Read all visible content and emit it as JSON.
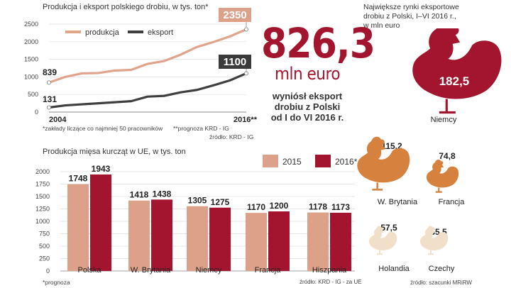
{
  "colors": {
    "prod": "#e0a38c",
    "eksp": "#3f3f3f",
    "c2015": "#dda18a",
    "c2016": "#a3152f",
    "dark": "#333333",
    "maroon": "#a3152f",
    "light_orange": "#d6823e",
    "lighter": "#f1dfc9"
  },
  "line_chart": {
    "title": "Produkcja i eksport polskiego drobiu, w tys. ton*",
    "legend": {
      "production": "produkcja",
      "export": "eksport"
    },
    "start_label_prod": "839",
    "start_label_eksp": "131",
    "end_label_prod": "2350",
    "end_label_eksp": "1100",
    "x_start": "2004",
    "x_end": "2016**",
    "yticks": [
      "0",
      "500",
      "1000",
      "1500",
      "2000",
      "2500"
    ],
    "footnote": "*zakłady liczące co najmniej 50 pracowników",
    "footnote2": "**prognoza KRD - IG",
    "source": "źródło: KRD - IG"
  },
  "highlight": {
    "value": "826,3",
    "unit": "mln euro",
    "desc_line1": "wyniósł eksport",
    "desc_line2": "drobiu z Polski",
    "desc_line3": "od I do VI 2016 r."
  },
  "markets": {
    "title_line1": "Największe rynki eksportowe",
    "title_line2": "drobiu z Polski, I–VI 2016 r.,",
    "title_line3": "w mln euro",
    "items": [
      {
        "name": "Niemcy",
        "value": "182,5"
      },
      {
        "name": "W. Brytania",
        "value": "115,2"
      },
      {
        "name": "Francja",
        "value": "74,8"
      },
      {
        "name": "Holandia",
        "value": "57,5"
      },
      {
        "name": "Czechy",
        "value": "55,5"
      }
    ],
    "source": "źródło: szacunki MRiRW"
  },
  "bar_chart": {
    "title": "Produkcja mięsa kurcząt w UE, w tys. ton",
    "legend": [
      "2015",
      "2016*"
    ],
    "yticks": [
      "0",
      "250",
      "500",
      "750",
      "1000",
      "1250",
      "1500",
      "1750",
      "2000"
    ],
    "footnote": "*prognoza",
    "source": "źródło: KRD - IG - za UE"
  },
  "chart_data": [
    {
      "type": "line",
      "title": "Produkcja i eksport polskiego drobiu, w tys. ton*",
      "x": [
        "2004",
        "2005",
        "2006",
        "2007",
        "2008",
        "2009",
        "2010",
        "2011",
        "2012",
        "2013",
        "2014",
        "2015",
        "2016**"
      ],
      "ylim": [
        0,
        2500
      ],
      "series": [
        {
          "name": "produkcja",
          "values": [
            839,
            1000,
            1100,
            1110,
            1180,
            1200,
            1370,
            1450,
            1630,
            1850,
            1990,
            2150,
            2350
          ]
        },
        {
          "name": "eksport",
          "values": [
            131,
            190,
            220,
            250,
            280,
            310,
            440,
            460,
            560,
            630,
            760,
            900,
            1100
          ]
        }
      ]
    },
    {
      "type": "bar",
      "title": "Produkcja mięsa kurcząt w UE, w tys. ton",
      "categories": [
        "Polska",
        "W. Brytania",
        "Niemcy",
        "Francja",
        "Hiszpania"
      ],
      "ylim": [
        0,
        2000
      ],
      "series": [
        {
          "name": "2015",
          "values": [
            1748,
            1418,
            1305,
            1170,
            1178
          ]
        },
        {
          "name": "2016*",
          "values": [
            1943,
            1438,
            1275,
            1200,
            1173
          ]
        }
      ]
    }
  ]
}
